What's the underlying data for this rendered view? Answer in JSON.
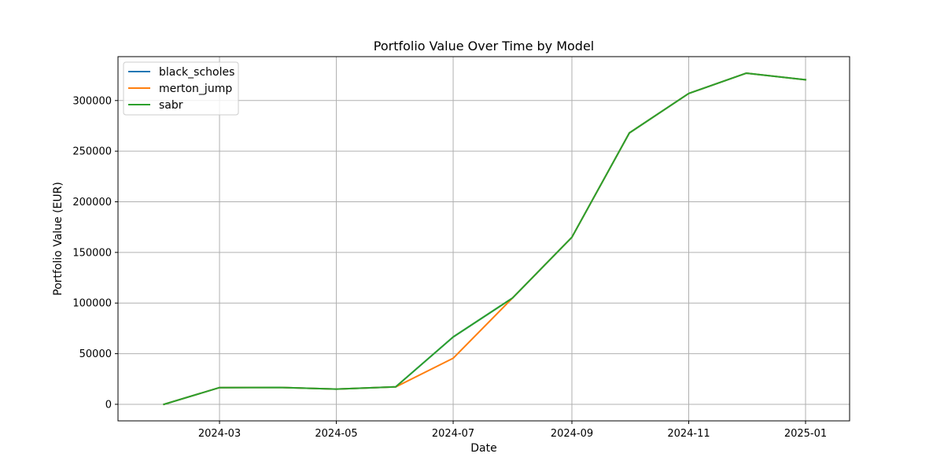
{
  "chart_data": {
    "type": "line",
    "title": "Portfolio Value Over Time by Model",
    "xlabel": "Date",
    "ylabel": "Portfolio Value (EUR)",
    "x": [
      "2024-02-01",
      "2024-03-01",
      "2024-04-01",
      "2024-05-01",
      "2024-06-01",
      "2024-07-01",
      "2024-08-01",
      "2024-09-01",
      "2024-10-01",
      "2024-11-01",
      "2024-12-01",
      "2025-01-01"
    ],
    "series": [
      {
        "name": "black_scholes",
        "color": "#1f77b4",
        "values": [
          0,
          16500,
          16700,
          15000,
          17200,
          66500,
          105000,
          165000,
          268000,
          307000,
          327000,
          320500
        ]
      },
      {
        "name": "merton_jump",
        "color": "#ff7f0e",
        "values": [
          0,
          16500,
          16700,
          15000,
          17200,
          45500,
          105000,
          165000,
          268000,
          307000,
          327000,
          320500
        ]
      },
      {
        "name": "sabr",
        "color": "#2ca02c",
        "values": [
          0,
          16500,
          16700,
          15000,
          17200,
          66500,
          105000,
          165000,
          268000,
          307000,
          327000,
          320500
        ]
      }
    ],
    "xlim": [
      "2024-01-08",
      "2025-01-24"
    ],
    "ylim": [
      -16350,
      343350
    ],
    "x_ticks": [
      "2024-03",
      "2024-05",
      "2024-07",
      "2024-09",
      "2024-11",
      "2025-01"
    ],
    "x_tick_dates": [
      "2024-03-01",
      "2024-05-01",
      "2024-07-01",
      "2024-09-01",
      "2024-11-01",
      "2025-01-01"
    ],
    "y_ticks": [
      "0",
      "50000",
      "100000",
      "150000",
      "200000",
      "250000",
      "300000"
    ],
    "y_tick_values": [
      0,
      50000,
      100000,
      150000,
      200000,
      250000,
      300000
    ],
    "grid": true,
    "legend": "upper-left"
  }
}
